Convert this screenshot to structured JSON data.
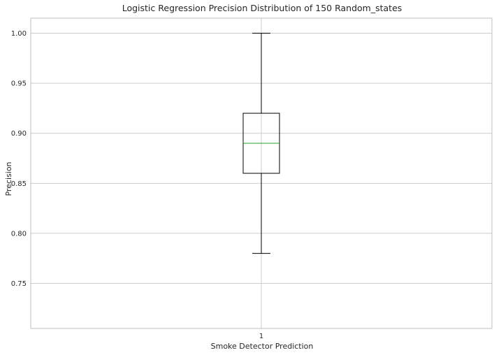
{
  "chart_data": {
    "type": "box",
    "title": "Logistic Regression Precision Distribution of 150 Random_states",
    "xlabel": "Smoke Detector Prediction",
    "ylabel": "Precision",
    "categories": [
      "1"
    ],
    "boxes": [
      {
        "category": "1",
        "whisker_low": 0.78,
        "q1": 0.86,
        "median": 0.89,
        "q3": 0.92,
        "whisker_high": 1.0
      }
    ],
    "ylim": [
      0.705,
      1.015
    ],
    "yticks": [
      0.75,
      0.8,
      0.85,
      0.9,
      0.95,
      1.0
    ],
    "ytick_labels": [
      "0.75",
      "0.80",
      "0.85",
      "0.90",
      "0.95",
      "1.00"
    ],
    "grid": true,
    "colors": {
      "box": "#000000",
      "median": "#2ca02c",
      "grid": "#cccccc",
      "frame": "#bfbfbf"
    }
  }
}
